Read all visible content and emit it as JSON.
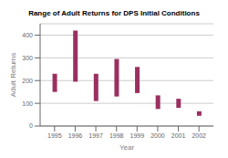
{
  "chart_data": {
    "type": "bar",
    "title": "Range of Adult Returns for DPS Initial Conditions",
    "x_label": "Year",
    "y_label": "Adult Returns",
    "x": [
      1995,
      1996,
      1997,
      1998,
      1999,
      2000,
      2001,
      2002
    ],
    "values": [
      [
        150,
        230
      ],
      [
        195,
        420
      ],
      [
        110,
        230
      ],
      [
        130,
        295
      ],
      [
        145,
        260
      ],
      [
        75,
        135
      ],
      [
        80,
        120
      ],
      [
        45,
        65
      ]
    ],
    "color": "#9B3060",
    "xlim": [
      1994.3,
      2002.7
    ],
    "xticks": [
      1995,
      1996,
      1997,
      1998,
      1999,
      2000,
      2001,
      2002
    ],
    "ylim": [
      0,
      450
    ],
    "yticks": [
      0,
      100,
      200,
      300,
      400
    ],
    "grid": true
  }
}
